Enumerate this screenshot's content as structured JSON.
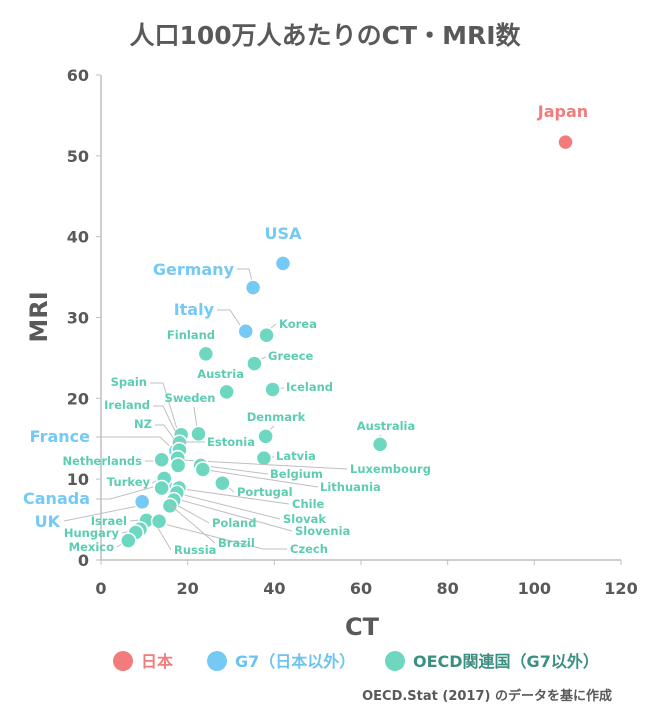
{
  "chart_data": {
    "type": "scatter",
    "title": "人口100万人あたりのCT・MRI数",
    "xlabel": "CT",
    "ylabel": "MRI",
    "xlim": [
      0,
      120
    ],
    "ylim": [
      0,
      60
    ],
    "xticks": [
      0,
      20,
      40,
      60,
      80,
      100,
      120
    ],
    "yticks": [
      0,
      10,
      20,
      30,
      40,
      50,
      60
    ],
    "grid": false,
    "legend_position": "bottom",
    "source_note": "OECD.Stat (2017) のデータを基に作成",
    "series": [
      {
        "name": "日本",
        "color": "#f27c7c",
        "points": [
          {
            "label": "Japan",
            "x": 107.2,
            "y": 51.7
          }
        ]
      },
      {
        "name": "G7（日本以外）",
        "color": "#75c9f5",
        "points": [
          {
            "label": "USA",
            "x": 42.0,
            "y": 36.7
          },
          {
            "label": "Germany",
            "x": 35.1,
            "y": 33.7
          },
          {
            "label": "Italy",
            "x": 33.4,
            "y": 28.3
          },
          {
            "label": "France",
            "x": 17.3,
            "y": 13.5
          },
          {
            "label": "Canada",
            "x": 14.8,
            "y": 9.3
          },
          {
            "label": "UK",
            "x": 9.5,
            "y": 7.2
          }
        ]
      },
      {
        "name": "OECD関連国（G7以外）",
        "color": "#6ed7bf",
        "points": [
          {
            "label": "Korea",
            "x": 38.2,
            "y": 27.8
          },
          {
            "label": "Finland",
            "x": 24.2,
            "y": 25.5
          },
          {
            "label": "Greece",
            "x": 35.4,
            "y": 24.3
          },
          {
            "label": "Austria",
            "x": 29.0,
            "y": 20.8
          },
          {
            "label": "Iceland",
            "x": 39.6,
            "y": 21.1
          },
          {
            "label": "Spain",
            "x": 18.5,
            "y": 15.5
          },
          {
            "label": "Sweden",
            "x": 22.5,
            "y": 15.6
          },
          {
            "label": "Ireland",
            "x": 18.1,
            "y": 14.5
          },
          {
            "label": "NZ",
            "x": 18.1,
            "y": 13.6
          },
          {
            "label": "Denmark",
            "x": 38.0,
            "y": 15.3
          },
          {
            "label": "Australia",
            "x": 64.4,
            "y": 14.3
          },
          {
            "label": "Estonia",
            "x": 17.7,
            "y": 12.6
          },
          {
            "label": "Netherlands",
            "x": 14.0,
            "y": 12.4
          },
          {
            "label": "Latvia",
            "x": 37.6,
            "y": 12.6
          },
          {
            "label": "Luxembourg",
            "x": 17.8,
            "y": 11.7
          },
          {
            "label": "Belgium",
            "x": 23.0,
            "y": 11.7
          },
          {
            "label": "Lithuania",
            "x": 23.5,
            "y": 11.2
          },
          {
            "label": "Portugal",
            "x": 28.0,
            "y": 9.5
          },
          {
            "label": "Turkey",
            "x": 14.6,
            "y": 10.1
          },
          {
            "label": "Chile",
            "x": 18.0,
            "y": 8.9
          },
          {
            "label": "Slovak",
            "x": 17.5,
            "y": 8.3
          },
          {
            "label": "Slovenia",
            "x": 16.8,
            "y": 7.4
          },
          {
            "label": "Poland",
            "x": 15.9,
            "y": 6.7
          },
          {
            "label": "Israel",
            "x": 10.5,
            "y": 4.9
          },
          {
            "label": "Czech",
            "x": 13.4,
            "y": 4.8
          },
          {
            "label": "Hungary",
            "x": 9.0,
            "y": 3.8
          },
          {
            "label": "Russia",
            "x": 8.0,
            "y": 3.4
          },
          {
            "label": "Brazil",
            "x": 14.0,
            "y": 8.9
          },
          {
            "label": "Mexico",
            "x": 6.3,
            "y": 2.4
          }
        ]
      }
    ]
  }
}
